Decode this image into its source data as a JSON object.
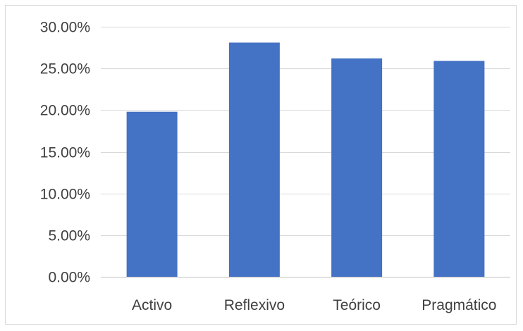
{
  "chart_data": {
    "type": "bar",
    "categories": [
      "Activo",
      "Reflexivo",
      "Teórico",
      "Pragmático"
    ],
    "values": [
      0.198,
      0.281,
      0.262,
      0.259
    ],
    "yticks": [
      "0.00%",
      "5.00%",
      "10.00%",
      "15.00%",
      "20.00%",
      "25.00%",
      "30.00%"
    ],
    "ylim": [
      0,
      0.3
    ],
    "title": "",
    "xlabel": "",
    "ylabel": "",
    "grid": true,
    "legend": "none",
    "bar_color": "#4472C4",
    "grid_color": "#D9D9D9",
    "text_color": "#404040"
  }
}
